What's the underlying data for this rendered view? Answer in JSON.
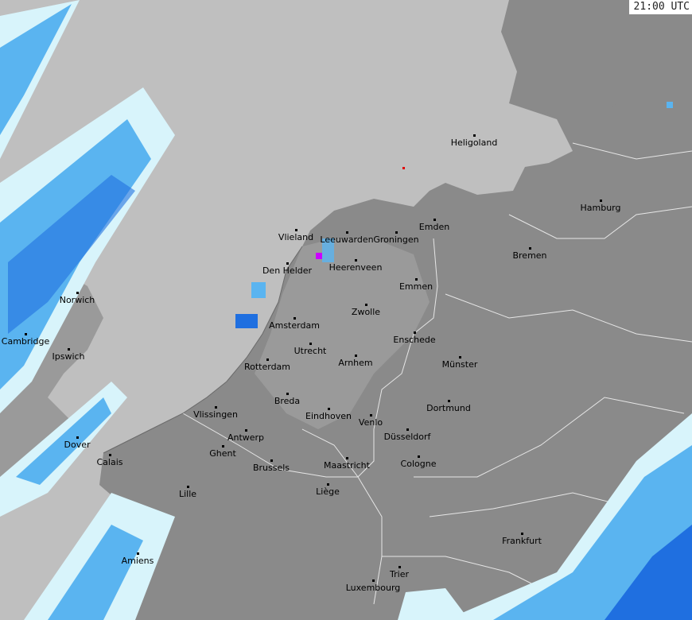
{
  "timestamp": "21:00 UTC",
  "colors": {
    "sea": "#bfbfbf",
    "land": "#8a8a8a",
    "land_dark": "#7a7a7a",
    "border": "#e8e8e8",
    "rain_light": "#d8f4fb",
    "rain_medium": "#5ab4f0",
    "rain_heavy": "#1f6fe0",
    "rain_intense": "#cc00ff"
  },
  "cities": [
    "Heligoland",
    "Hamburg",
    "Bremen",
    "Emden",
    "Groningen",
    "Leeuwarden",
    "Vlieland",
    "Den Helder",
    "Heerenveen",
    "Emmen",
    "Zwolle",
    "Amsterdam",
    "Enschede",
    "Utrecht",
    "Rotterdam",
    "Arnhem",
    "Münster",
    "Breda",
    "Eindhoven",
    "Venlo",
    "Dortmund",
    "Düsseldorf",
    "Vlissingen",
    "Antwerp",
    "Ghent",
    "Brussels",
    "Maastricht",
    "Cologne",
    "Liège",
    "Lille",
    "Calais",
    "Dover",
    "Amiens",
    "Frankfurt",
    "Trier",
    "Luxembourg",
    "Norwich",
    "Ipswich",
    "Cambridge"
  ]
}
